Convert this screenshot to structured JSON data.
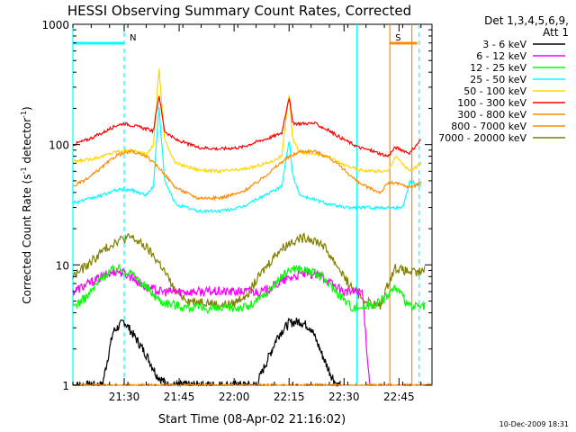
{
  "chart_data": {
    "type": "line",
    "title": "HESSI Observing Summary Count Rates, Corrected",
    "xlabel": "Start Time (08-Apr-02 21:16:02)",
    "ylabel_main": "Corrected Count Rate (s",
    "ylabel_sup1": "-1",
    "ylabel_mid": " detector",
    "ylabel_sup2": "-1",
    "ylabel_end": ")",
    "y_scale": "log",
    "ylim": [
      1,
      1000
    ],
    "xlim": [
      0,
      98
    ],
    "x_ticks": [
      {
        "label": "21:30",
        "value": 14
      },
      {
        "label": "21:45",
        "value": 29
      },
      {
        "label": "22:00",
        "value": 44
      },
      {
        "label": "22:15",
        "value": 59
      },
      {
        "label": "22:30",
        "value": 74
      },
      {
        "label": "22:45",
        "value": 89
      }
    ],
    "y_ticks": [
      {
        "label": "1",
        "value": 1
      },
      {
        "label": "10",
        "value": 10
      },
      {
        "label": "100",
        "value": 100
      },
      {
        "label": "1000",
        "value": 1000
      }
    ],
    "legend_header": [
      "Det 1,3,4,5,6,9,",
      "Att 1"
    ],
    "legend_position": "right",
    "series": [
      {
        "name": "3 - 6 keV",
        "color": "#000000",
        "x": [
          0,
          8,
          11,
          14,
          17,
          20,
          23,
          26,
          30,
          35,
          40,
          45,
          50,
          53,
          56,
          59,
          62,
          65,
          68,
          70,
          72,
          73
        ],
        "y": [
          1,
          1,
          2.8,
          3.4,
          2.5,
          1.8,
          1.2,
          1,
          1,
          1,
          1,
          1,
          1,
          1.6,
          2.6,
          3.3,
          3.4,
          3,
          1.8,
          1.3,
          1,
          1
        ]
      },
      {
        "name": "6 - 12 keV",
        "color": "#ff00ff",
        "x": [
          0,
          8,
          12,
          16,
          20,
          24,
          30,
          40,
          48,
          52,
          56,
          60,
          64,
          68,
          72,
          74,
          79,
          81
        ],
        "y": [
          6,
          8,
          9,
          8,
          6.5,
          6,
          6,
          6,
          6,
          6,
          7,
          8,
          8.5,
          8,
          6.5,
          6,
          6,
          1
        ]
      },
      {
        "name": "12 - 25 keV",
        "color": "#00ff00",
        "x": [
          0,
          4,
          8,
          12,
          16,
          20,
          24,
          30,
          40,
          48,
          52,
          56,
          60,
          64,
          68,
          72,
          76,
          80,
          84,
          88,
          92,
          96
        ],
        "y": [
          4.5,
          5.5,
          8,
          9.5,
          8.5,
          6.5,
          5,
          4.5,
          4.3,
          4.5,
          5.5,
          7.5,
          9.5,
          9,
          8,
          6,
          4.5,
          4.5,
          5,
          6.5,
          4.5,
          4.5
        ]
      },
      {
        "name": "25 - 50 keV",
        "color": "#00ffff",
        "x": [
          0,
          4,
          8,
          12,
          16,
          20,
          22,
          23.5,
          25,
          28,
          34,
          40,
          46,
          50,
          54,
          57,
          59,
          60,
          62,
          66,
          70,
          74,
          78,
          82,
          86,
          90,
          92,
          95
        ],
        "y": [
          33,
          35,
          38,
          42,
          42,
          38,
          45,
          210,
          50,
          32,
          28,
          28,
          30,
          35,
          40,
          45,
          110,
          55,
          38,
          35,
          32,
          30,
          30,
          30,
          30,
          30,
          50,
          45
        ]
      },
      {
        "name": "50 - 100 keV",
        "color": "#ffd700",
        "x": [
          0,
          4,
          8,
          12,
          16,
          20,
          22,
          23.5,
          25,
          28,
          34,
          40,
          46,
          50,
          54,
          57,
          59,
          60,
          62,
          66,
          70,
          74,
          78,
          82,
          86,
          88,
          92,
          95
        ],
        "y": [
          72,
          75,
          80,
          88,
          90,
          82,
          100,
          440,
          110,
          70,
          62,
          60,
          62,
          66,
          72,
          80,
          270,
          110,
          85,
          85,
          78,
          68,
          62,
          60,
          60,
          80,
          60,
          70
        ]
      },
      {
        "name": "100 - 300 keV",
        "color": "#ff0000",
        "x": [
          0,
          4,
          8,
          12,
          14,
          18,
          22,
          23.5,
          25,
          28,
          34,
          40,
          46,
          50,
          54,
          57,
          59,
          60,
          62,
          66,
          70,
          74,
          78,
          82,
          86,
          88,
          92,
          95
        ],
        "y": [
          100,
          110,
          125,
          145,
          150,
          140,
          130,
          260,
          130,
          110,
          95,
          92,
          95,
          105,
          115,
          125,
          250,
          150,
          150,
          150,
          130,
          110,
          95,
          88,
          80,
          95,
          85,
          110
        ]
      },
      {
        "name": "300 - 800 keV",
        "color": "#ff8c00",
        "x": [
          0,
          4,
          8,
          12,
          16,
          20,
          24,
          28,
          34,
          40,
          46,
          50,
          54,
          58,
          62,
          66,
          70,
          74,
          78,
          82,
          84,
          86,
          88,
          92,
          95
        ],
        "y": [
          45,
          52,
          65,
          82,
          88,
          80,
          62,
          44,
          36,
          36,
          40,
          48,
          60,
          76,
          88,
          88,
          78,
          62,
          48,
          42,
          40,
          48,
          48,
          44,
          48
        ]
      },
      {
        "name": "800 - 7000 keV",
        "color": "#ff8c00",
        "x": [
          0,
          98
        ],
        "y": [
          1,
          1
        ]
      },
      {
        "name": "7000 - 20000 keV",
        "color": "#808000",
        "x": [
          0,
          4,
          8,
          12,
          16,
          20,
          24,
          28,
          32,
          36,
          40,
          44,
          48,
          52,
          56,
          60,
          64,
          68,
          72,
          76,
          80,
          84,
          86,
          88,
          90,
          94,
          96
        ],
        "y": [
          8,
          10,
          13,
          16,
          17,
          14,
          10,
          6,
          5,
          5,
          4.6,
          4.8,
          6,
          9,
          13,
          16,
          17,
          15,
          10,
          6.5,
          5,
          4.5,
          7,
          9.5,
          9,
          8.5,
          9
        ]
      }
    ],
    "markers": [
      {
        "label": "N",
        "x": 14,
        "color": "#00ffff",
        "span": [
          0,
          14
        ]
      },
      {
        "label": "S",
        "x": 86.5,
        "color": "#ff8c00",
        "span": [
          86.5,
          94
        ]
      }
    ],
    "vlines": [
      {
        "x": 0,
        "color": "#00ffff",
        "dashed": false
      },
      {
        "x": 14,
        "color": "#00ffff",
        "dashed": true
      },
      {
        "x": 77.5,
        "color": "#00ffff",
        "dashed": false
      },
      {
        "x": 86.5,
        "color": "#ff8c00",
        "dashed": false
      },
      {
        "x": 92.5,
        "color": "#ff8c00",
        "dashed": false
      },
      {
        "x": 94.5,
        "color": "#00ffff",
        "dashed": true
      }
    ],
    "timestamp": "10-Dec-2009 18:31"
  }
}
